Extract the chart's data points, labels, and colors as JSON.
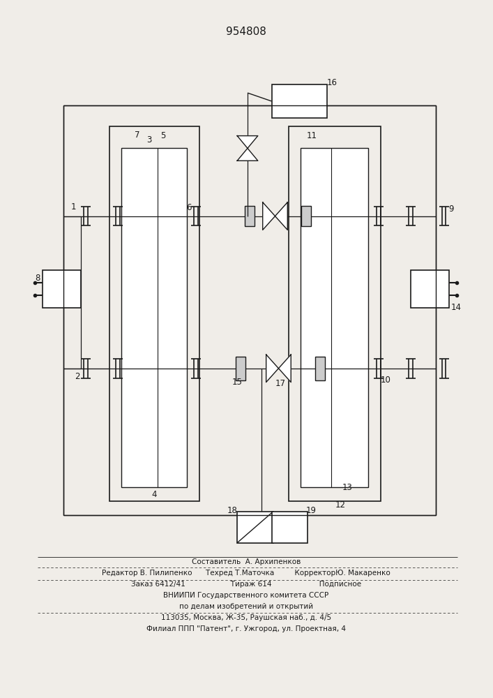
{
  "title": "954808",
  "bg_color": "#f0ede8",
  "line_color": "#1a1a1a",
  "footer": {
    "line1": "Составитель  А. Архипенков",
    "line2": "Редактор В. Пилипенко      Техред Т.Маточка         КорректорЮ. Макаренко",
    "line3": "Заказ 6412/41                    Тираж 614                     Подписное",
    "line4": "ВНИИПИ Государственного комитета СССР",
    "line5": "по делам изобретений и открытий",
    "line6": "113035, Москва, Ж-35, Раушская наб., д. 4/5",
    "line7": "Филиал ППП \"Патент\", г. Ужгород, ул. Проектная, 4"
  }
}
